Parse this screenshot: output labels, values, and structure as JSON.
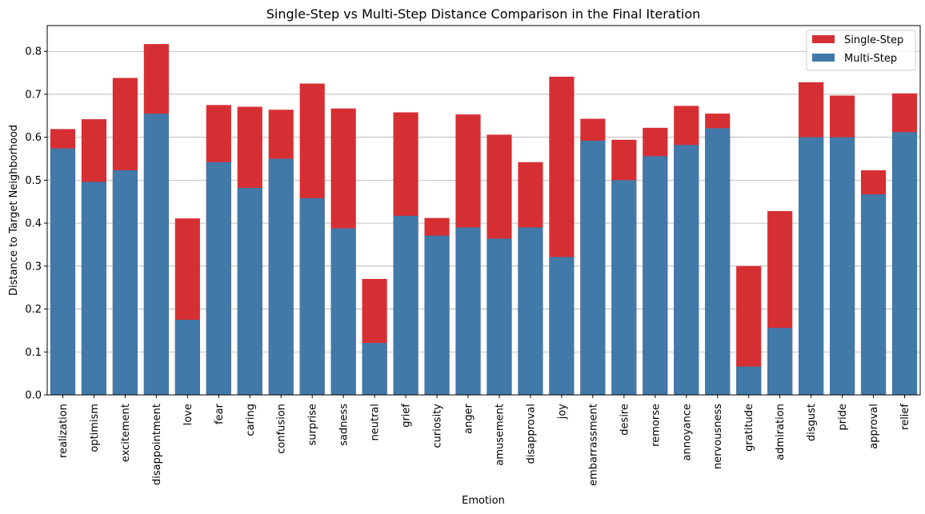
{
  "chart_data": {
    "type": "bar",
    "title": "Single-Step vs Multi-Step Distance Comparison in the Final Iteration",
    "xlabel": "Emotion",
    "ylabel": "Distance to Target Neighborhood",
    "ylim": [
      0,
      0.86
    ],
    "yticks": [
      0.0,
      0.1,
      0.2,
      0.3,
      0.4,
      0.5,
      0.6,
      0.7,
      0.8
    ],
    "ytick_labels": [
      "0.0",
      "0.1",
      "0.2",
      "0.3",
      "0.4",
      "0.5",
      "0.6",
      "0.7",
      "0.8"
    ],
    "grid": "horizontal",
    "legend_position": "top-right",
    "categories": [
      "realization",
      "optimism",
      "excitement",
      "disappointment",
      "love",
      "fear",
      "caring",
      "confusion",
      "surprise",
      "sadness",
      "neutral",
      "grief",
      "curiosity",
      "anger",
      "amusement",
      "disapproval",
      "joy",
      "embarrassment",
      "desire",
      "remorse",
      "annoyance",
      "nervousness",
      "gratitude",
      "admiration",
      "disgust",
      "pride",
      "approval",
      "relief"
    ],
    "series": [
      {
        "name": "Single-Step",
        "color": "#d62f33",
        "values": [
          0.619,
          0.642,
          0.738,
          0.817,
          0.411,
          0.675,
          0.671,
          0.664,
          0.725,
          0.667,
          0.27,
          0.658,
          0.412,
          0.653,
          0.606,
          0.542,
          0.741,
          0.643,
          0.594,
          0.622,
          0.673,
          0.655,
          0.3,
          0.428,
          0.728,
          0.697,
          0.523,
          0.702
        ]
      },
      {
        "name": "Multi-Step",
        "color": "#4179a9",
        "values": [
          0.574,
          0.496,
          0.523,
          0.655,
          0.175,
          0.542,
          0.482,
          0.55,
          0.458,
          0.388,
          0.121,
          0.417,
          0.371,
          0.39,
          0.364,
          0.39,
          0.321,
          0.592,
          0.5,
          0.556,
          0.582,
          0.621,
          0.066,
          0.156,
          0.6,
          0.6,
          0.467,
          0.612
        ]
      }
    ]
  }
}
